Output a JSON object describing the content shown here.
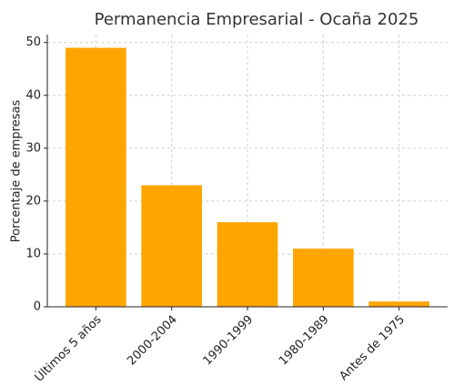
{
  "chart_data": {
    "type": "bar",
    "title": "Permanencia Empresarial - Ocaña 2025",
    "ylabel": "Porcentaje de empresas",
    "categories": [
      "Últimos 5 años",
      "2000-2004",
      "1990-1999",
      "1980-1989",
      "Antes de 1975"
    ],
    "values": [
      49,
      23,
      16,
      11,
      1
    ],
    "color": "#ffa500",
    "ylim": [
      0,
      51.5
    ],
    "yticks": [
      0,
      10,
      20,
      30,
      40,
      50
    ],
    "grid": true
  }
}
